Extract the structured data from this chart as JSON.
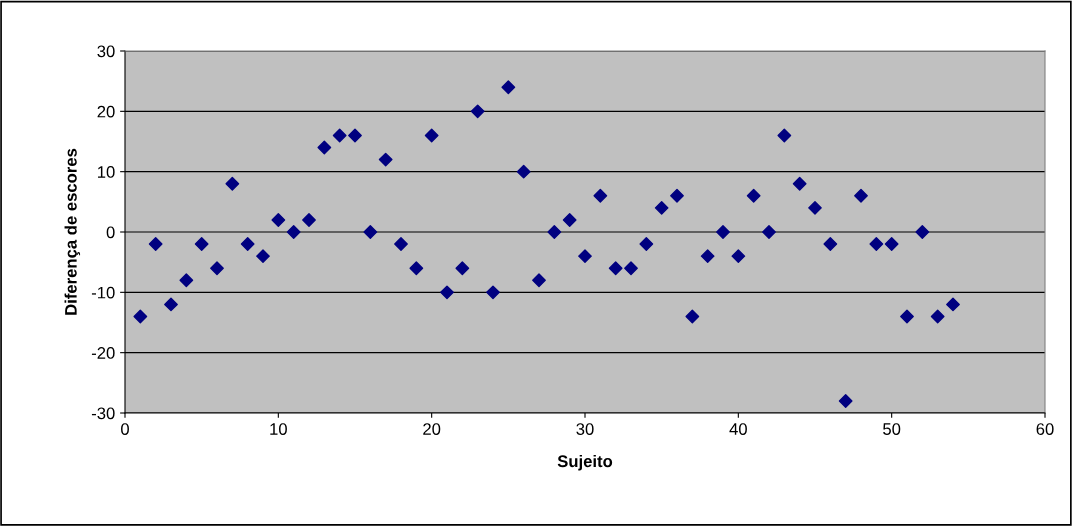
{
  "chart_data": {
    "type": "scatter",
    "xlabel": "Sujeito",
    "ylabel": "Diferença de escores",
    "x": [
      1,
      2,
      3,
      4,
      5,
      6,
      7,
      8,
      9,
      10,
      11,
      12,
      13,
      14,
      15,
      16,
      17,
      18,
      19,
      20,
      21,
      22,
      23,
      24,
      25,
      26,
      27,
      28,
      29,
      30,
      31,
      32,
      33,
      34,
      35,
      36,
      37,
      38,
      39,
      40,
      41,
      42,
      43,
      44,
      45,
      46,
      47,
      48,
      49,
      50,
      51,
      52,
      53,
      54
    ],
    "series": [
      {
        "color": "#000080",
        "values": [
          -14,
          -2,
          -12,
          -8,
          -2,
          -6,
          8,
          -2,
          -4,
          2,
          0,
          2,
          14,
          16,
          16,
          0,
          12,
          -2,
          -6,
          16,
          -10,
          -6,
          20,
          -10,
          24,
          10,
          -8,
          0,
          2,
          -4,
          6,
          -6,
          -6,
          -2,
          4,
          6,
          -14,
          -4,
          0,
          -4,
          6,
          0,
          16,
          8,
          4,
          -2,
          -28,
          6,
          -2,
          -2,
          -14,
          0,
          -14,
          -12
        ]
      }
    ],
    "xlim": [
      0,
      60
    ],
    "xticks": [
      0,
      10,
      20,
      30,
      40,
      50,
      60
    ],
    "ylim": [
      -30,
      30
    ],
    "yticks": [
      -30,
      -20,
      -10,
      0,
      10,
      20,
      30
    ],
    "grid": "y",
    "marker": "diamond",
    "legend": false
  }
}
